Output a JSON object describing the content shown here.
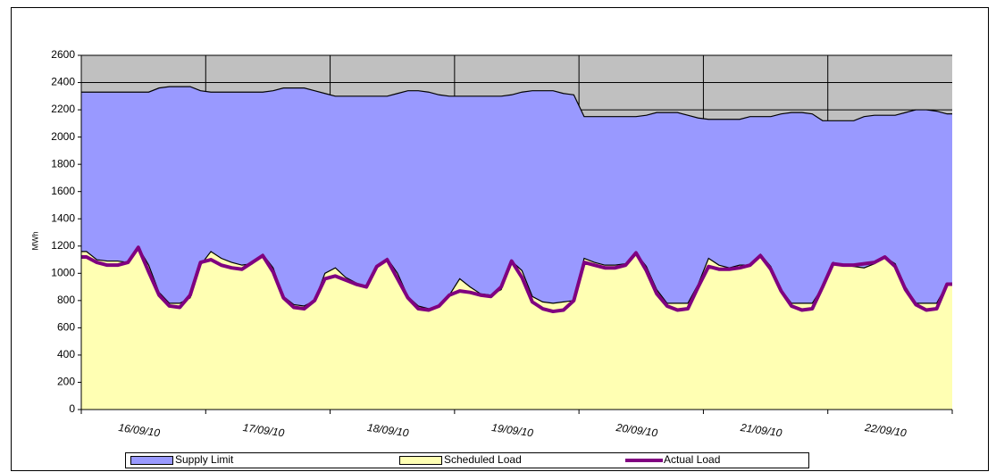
{
  "chart_data": {
    "type": "area",
    "ylabel": "MWh",
    "categories": [
      "16/09/10",
      "17/09/10",
      "18/09/10",
      "19/09/10",
      "20/09/10",
      "21/09/10",
      "22/09/10"
    ],
    "ylim": [
      0,
      2600
    ],
    "yticks": [
      0,
      200,
      400,
      600,
      800,
      1000,
      1200,
      1400,
      1600,
      1800,
      2000,
      2200,
      2400,
      2600
    ],
    "grid": true,
    "background": "#c0c0c0",
    "legend": "bottom",
    "series": [
      {
        "name": "Supply Limit",
        "kind": "area",
        "color": "#9999ff",
        "values": [
          [
            2330,
            2330,
            2330,
            2330,
            2330,
            2330,
            2330,
            2360,
            2370,
            2370,
            2370,
            2340
          ],
          [
            2330,
            2330,
            2330,
            2330,
            2330,
            2330,
            2340,
            2360,
            2360,
            2360,
            2340,
            2320
          ],
          [
            2300,
            2300,
            2300,
            2300,
            2300,
            2300,
            2320,
            2340,
            2340,
            2330,
            2310,
            2300
          ],
          [
            2300,
            2300,
            2300,
            2300,
            2300,
            2310,
            2330,
            2340,
            2340,
            2340,
            2320,
            2310
          ],
          [
            2150,
            2150,
            2150,
            2150,
            2150,
            2150,
            2160,
            2180,
            2180,
            2180,
            2160,
            2140
          ],
          [
            2130,
            2130,
            2130,
            2130,
            2150,
            2150,
            2150,
            2170,
            2180,
            2180,
            2170,
            2120
          ],
          [
            2120,
            2120,
            2120,
            2150,
            2160,
            2160,
            2160,
            2180,
            2200,
            2200,
            2190,
            2170
          ]
        ]
      },
      {
        "name": "Scheduled Load",
        "kind": "area",
        "color": "#ffffb3",
        "values": [
          [
            1160,
            1100,
            1090,
            1090,
            1080,
            1190,
            1060,
            860,
            780,
            780,
            820,
            1060
          ],
          [
            1160,
            1110,
            1080,
            1060,
            1070,
            1140,
            1040,
            830,
            770,
            760,
            800,
            1000
          ],
          [
            1040,
            970,
            930,
            900,
            1040,
            1110,
            1000,
            830,
            760,
            740,
            750,
            840
          ],
          [
            960,
            900,
            850,
            840,
            880,
            1090,
            1020,
            830,
            790,
            780,
            790,
            800
          ],
          [
            1110,
            1080,
            1060,
            1060,
            1070,
            1150,
            1050,
            880,
            780,
            780,
            780,
            920
          ],
          [
            1110,
            1060,
            1040,
            1060,
            1060,
            1140,
            1050,
            880,
            780,
            780,
            780,
            900
          ],
          [
            1080,
            1060,
            1050,
            1040,
            1070,
            1120,
            1070,
            900,
            780,
            780,
            780,
            920
          ]
        ]
      },
      {
        "name": "Actual Load",
        "kind": "line",
        "color": "#800080",
        "values": [
          [
            1120,
            1080,
            1060,
            1060,
            1080,
            1190,
            1010,
            840,
            760,
            750,
            840,
            1080
          ],
          [
            1100,
            1060,
            1040,
            1030,
            1080,
            1130,
            1010,
            820,
            750,
            740,
            800,
            960
          ],
          [
            980,
            950,
            920,
            900,
            1050,
            1100,
            960,
            820,
            740,
            730,
            760,
            840
          ],
          [
            870,
            860,
            840,
            830,
            900,
            1090,
            970,
            790,
            740,
            720,
            730,
            800
          ],
          [
            1080,
            1060,
            1040,
            1040,
            1060,
            1150,
            1020,
            850,
            760,
            730,
            740,
            900
          ],
          [
            1050,
            1030,
            1030,
            1040,
            1060,
            1130,
            1030,
            870,
            760,
            730,
            740,
            900
          ],
          [
            1070,
            1060,
            1060,
            1070,
            1080,
            1120,
            1050,
            880,
            770,
            730,
            740,
            920
          ]
        ]
      }
    ]
  }
}
